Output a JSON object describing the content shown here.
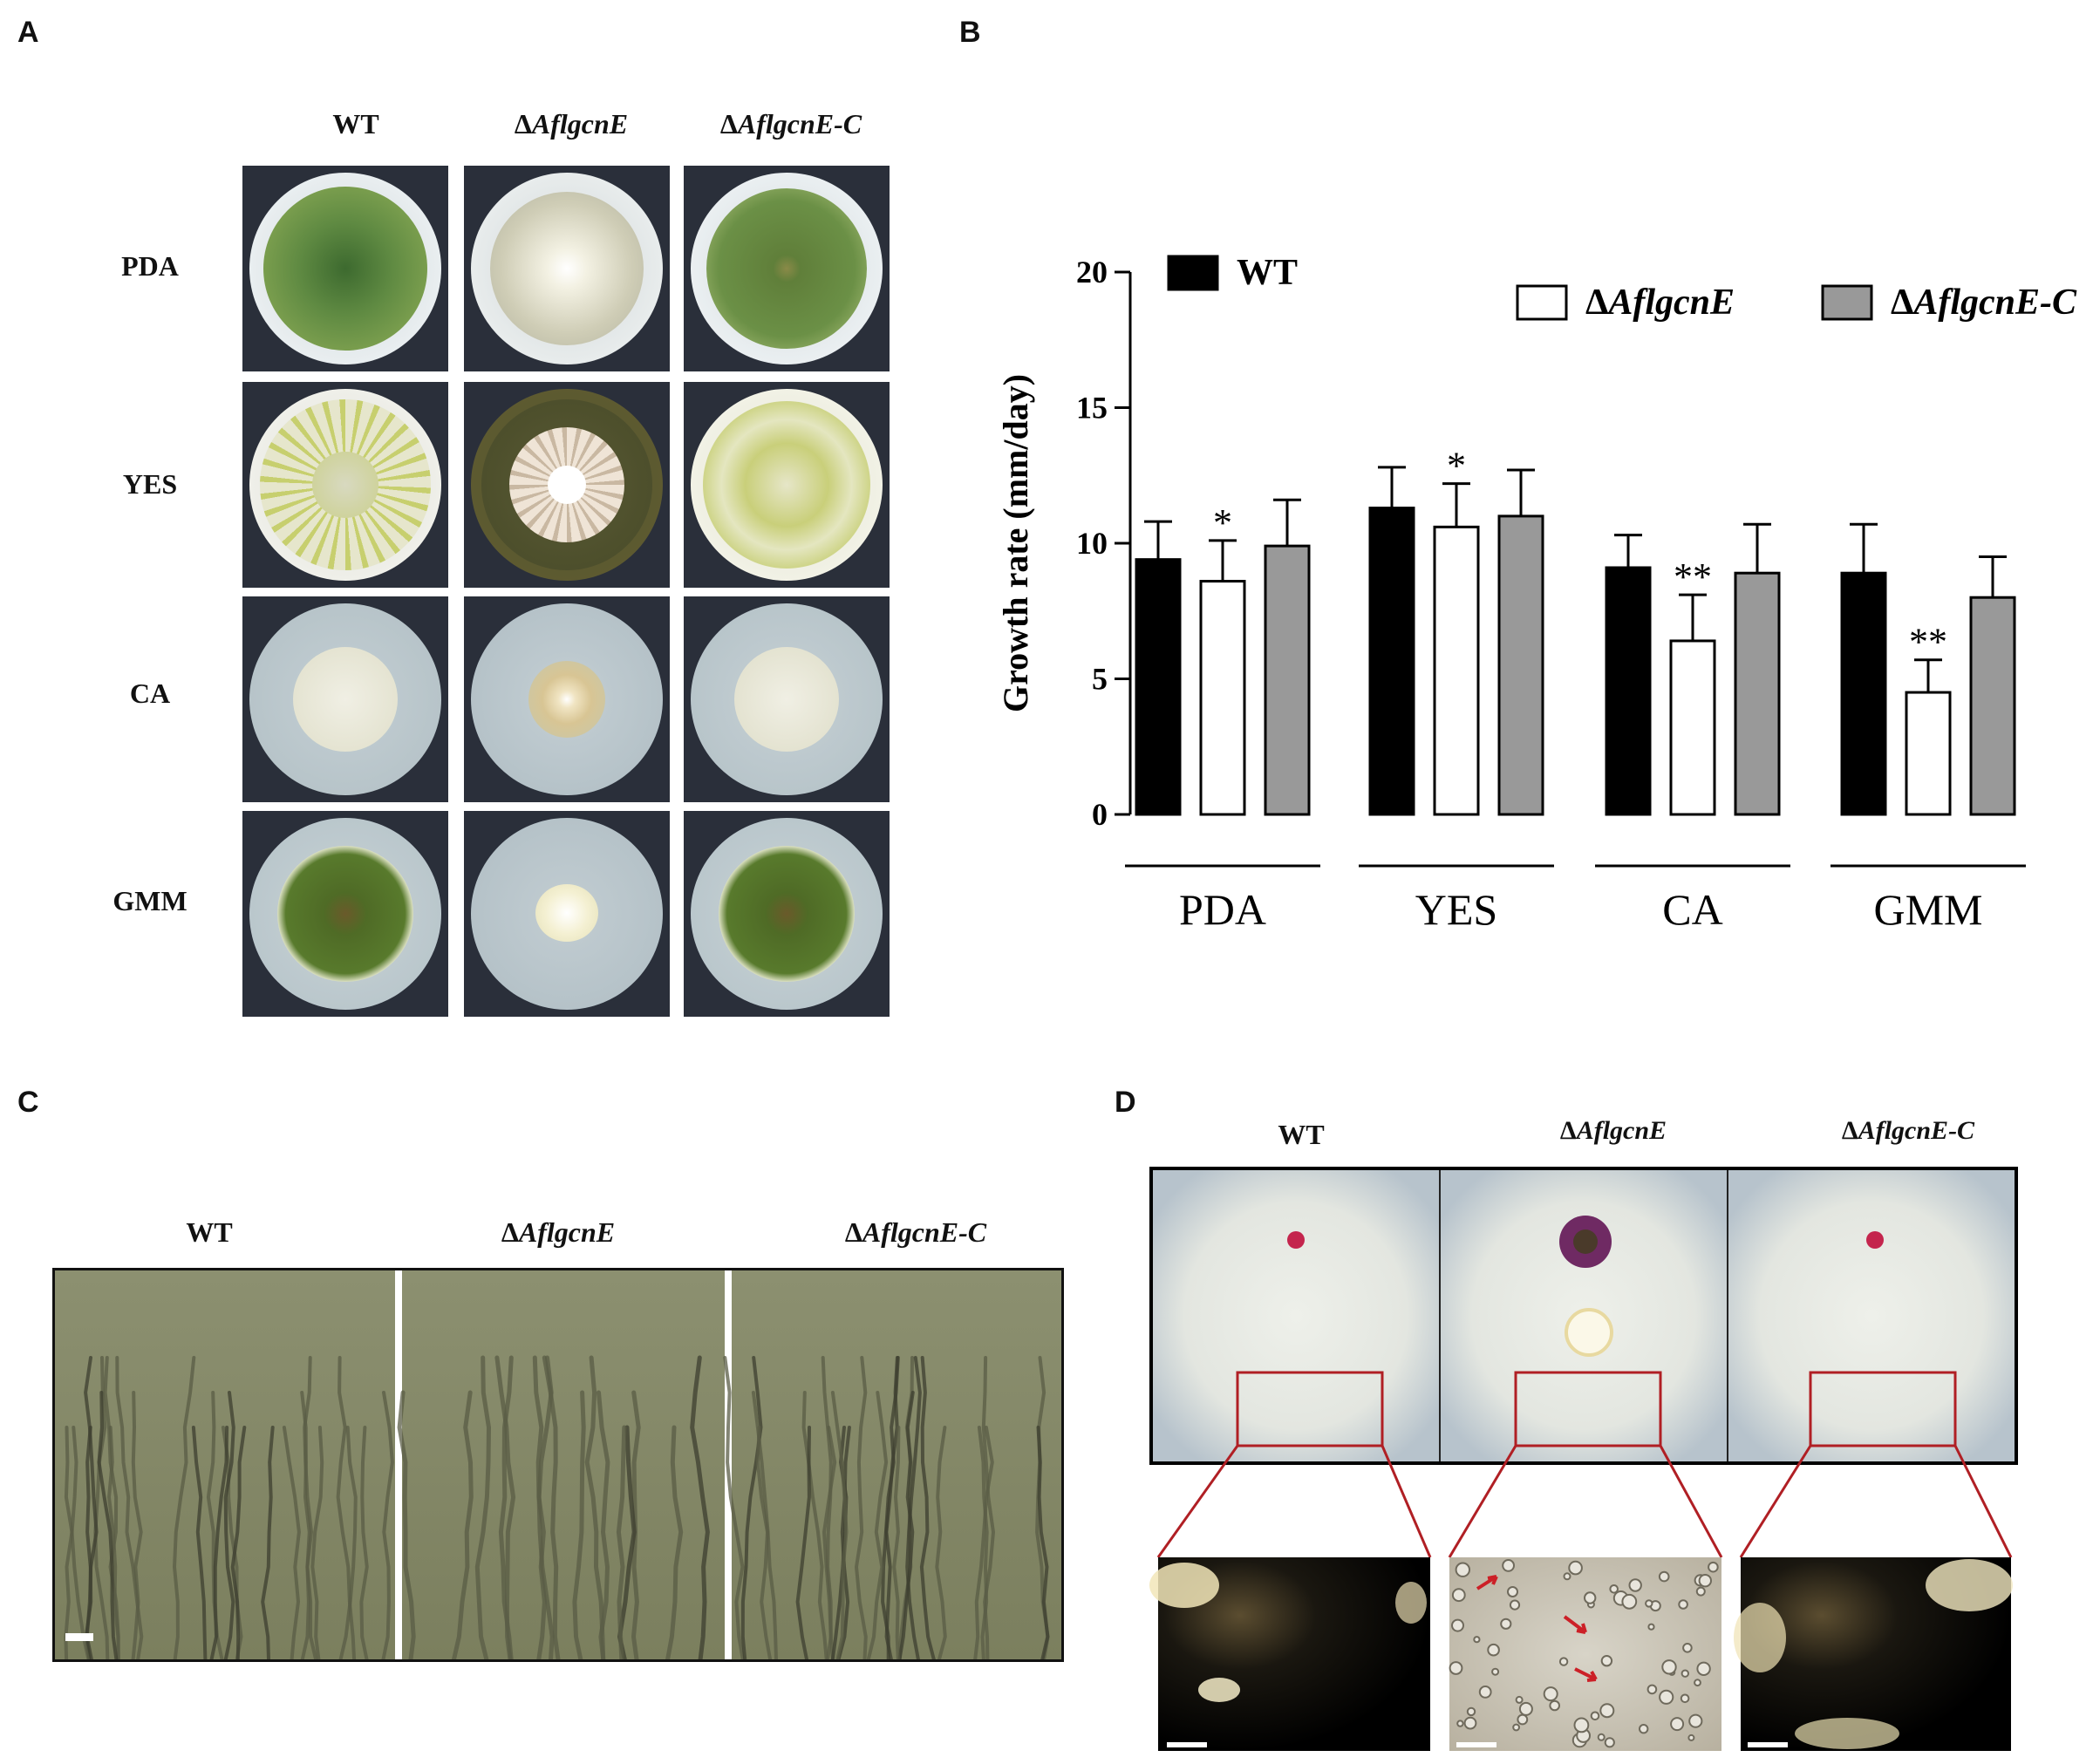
{
  "panels": {
    "a": "A",
    "b": "B",
    "c": "C",
    "d": "D"
  },
  "panel_a": {
    "columns": [
      {
        "prefix": "",
        "name": "WT"
      },
      {
        "prefix": "Δ",
        "name": "AflgcnE"
      },
      {
        "prefix": "Δ",
        "name": "AflgcnE-C"
      }
    ],
    "rows": [
      "PDA",
      "YES",
      "CA",
      "GMM"
    ]
  },
  "panel_c": {
    "columns": [
      {
        "prefix": "",
        "name": "WT"
      },
      {
        "prefix": "Δ",
        "name": "AflgcnE"
      },
      {
        "prefix": "Δ",
        "name": "AflgcnE-C"
      }
    ]
  },
  "panel_d": {
    "columns": [
      {
        "prefix": "",
        "name": "WT"
      },
      {
        "prefix": "Δ",
        "name": "AflgcnE"
      },
      {
        "prefix": "Δ",
        "name": "AflgcnE-C"
      }
    ]
  },
  "chart_data": {
    "type": "bar",
    "categories": [
      "PDA",
      "YES",
      "CA",
      "GMM"
    ],
    "ylabel": "Growth  rate (mm/day)",
    "xlabel": "",
    "ylim": [
      0,
      20
    ],
    "yticks": [
      0,
      5,
      10,
      15,
      20
    ],
    "grid": false,
    "legend_placement": "top",
    "series": [
      {
        "name": "WT",
        "name_prefix": "",
        "color": "#000000",
        "values": [
          9.4,
          11.3,
          9.1,
          8.9
        ],
        "errors": [
          1.4,
          1.5,
          1.2,
          1.8
        ]
      },
      {
        "name": "AflgcnE",
        "name_prefix": "Δ",
        "color": "#ffffff",
        "values": [
          8.6,
          10.6,
          6.4,
          4.5
        ],
        "errors": [
          1.5,
          1.6,
          1.7,
          1.2
        ]
      },
      {
        "name": "AflgcnE-C",
        "name_prefix": "Δ",
        "color": "#999999",
        "values": [
          9.9,
          11.0,
          8.9,
          8.0
        ],
        "errors": [
          1.7,
          1.7,
          1.8,
          1.5
        ]
      }
    ],
    "annotations": [
      {
        "category": "PDA",
        "series": "AflgcnE",
        "text": "*"
      },
      {
        "category": "YES",
        "series": "AflgcnE",
        "text": "*"
      },
      {
        "category": "CA",
        "series": "AflgcnE",
        "text": "**"
      },
      {
        "category": "GMM",
        "series": "AflgcnE",
        "text": "**"
      }
    ]
  }
}
